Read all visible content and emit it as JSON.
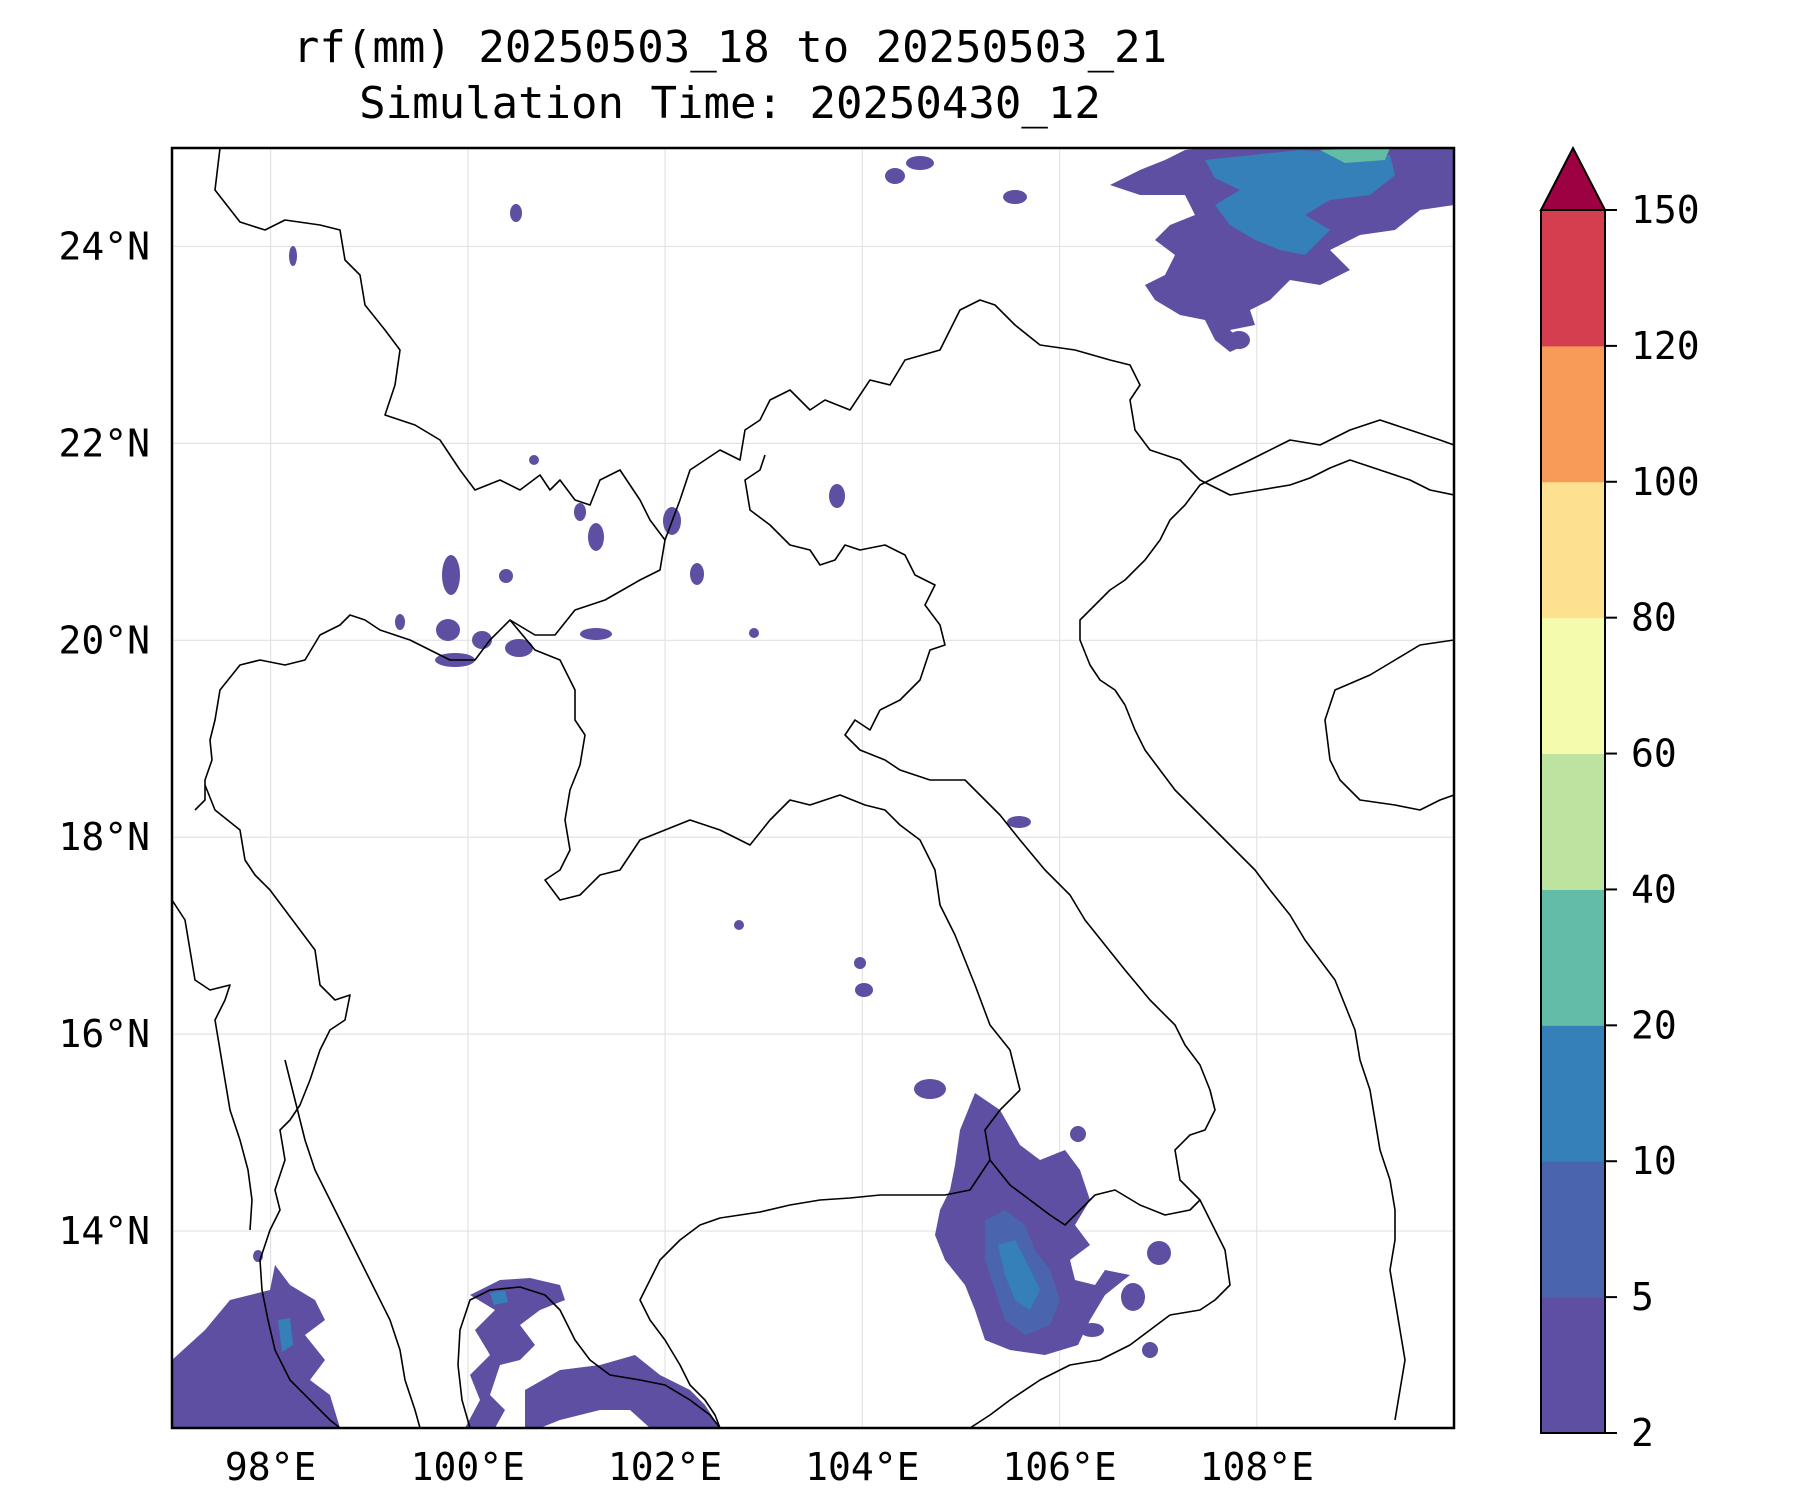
{
  "title": {
    "line1": "rf(mm) 20250503_18 to 20250503_21",
    "line2": "Simulation Time: 20250430_12"
  },
  "map": {
    "lon_range": [
      97.0,
      110.0
    ],
    "lat_range": [
      12.0,
      25.0
    ],
    "gridlines": true,
    "x_ticks": [
      {
        "value": 98,
        "label": "98°E"
      },
      {
        "value": 100,
        "label": "100°E"
      },
      {
        "value": 102,
        "label": "102°E"
      },
      {
        "value": 104,
        "label": "104°E"
      },
      {
        "value": 106,
        "label": "106°E"
      },
      {
        "value": 108,
        "label": "108°E"
      }
    ],
    "y_ticks": [
      {
        "value": 14,
        "label": "14°N"
      },
      {
        "value": 16,
        "label": "16°N"
      },
      {
        "value": 18,
        "label": "18°N"
      },
      {
        "value": 20,
        "label": "20°N"
      },
      {
        "value": 22,
        "label": "22°N"
      },
      {
        "value": 24,
        "label": "24°N"
      }
    ]
  },
  "colorbar": {
    "extend": "max",
    "extend_color": "#9e0142",
    "levels": [
      {
        "label": "2",
        "color": "#5e4fa2"
      },
      {
        "label": "5",
        "color": "#4a65ad"
      },
      {
        "label": "10",
        "color": "#3680b9"
      },
      {
        "label": "20",
        "color": "#63bca6"
      },
      {
        "label": "40",
        "color": "#bde3a1"
      },
      {
        "label": "60",
        "color": "#f4fbad"
      },
      {
        "label": "80",
        "color": "#fde190"
      },
      {
        "label": "100",
        "color": "#f99b58"
      },
      {
        "label": "120",
        "color": "#d53e4f"
      },
      {
        "label": "150",
        "color": null
      }
    ]
  },
  "rain_fields": [
    {
      "name": "northeast-rain-cluster",
      "level": "2-5",
      "center": [
        107.4,
        24.1
      ]
    },
    {
      "name": "northeast-rain-core",
      "level": "10-20",
      "center": [
        107.5,
        24.5
      ]
    },
    {
      "name": "central-cambodia-rain-cluster",
      "level": "2-5",
      "center": [
        105.3,
        13.6
      ]
    },
    {
      "name": "central-cambodia-rain-core",
      "level": "10-20",
      "center": [
        105.5,
        13.2
      ]
    },
    {
      "name": "southwest-rain-cluster",
      "level": "2-5",
      "center": [
        98.0,
        12.9
      ]
    },
    {
      "name": "gulf-thailand-rain-cluster",
      "level": "2-5",
      "center": [
        101.0,
        12.6
      ]
    }
  ]
}
